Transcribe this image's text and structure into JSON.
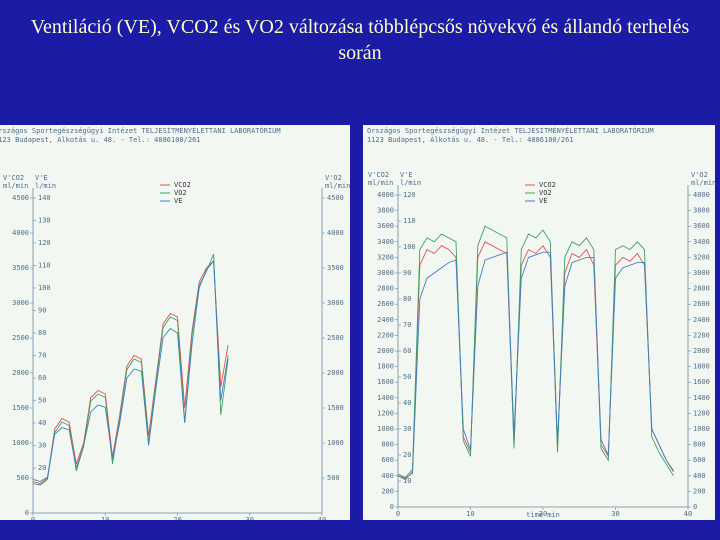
{
  "slide": {
    "title": "Ventiláció (VE), VCO2 és VO2 változása többlépcsős növekvő és állandó terhelés során"
  },
  "chart_data": [
    {
      "type": "line",
      "header": [
        "Országos Sportegészségügyi Intézet   TELJESÍTMÉNYÉLETTANI LABORATÓRIUM",
        "1123 Budapest, Alkotás u. 48. - Tel.: 4886100/261"
      ],
      "ylabel": [
        "V'CO2",
        "ml/min"
      ],
      "y2label": [
        "V'E",
        "l/min"
      ],
      "y3label": [
        "V'O2",
        "ml/min"
      ],
      "x": [
        0,
        1,
        2,
        3,
        4,
        5,
        6,
        7,
        8,
        9,
        10,
        11,
        12,
        13,
        14,
        15,
        16,
        17,
        18,
        19,
        20,
        21,
        22,
        23,
        24,
        25,
        26,
        27
      ],
      "xlim": [
        0,
        40
      ],
      "xticks": [
        0,
        10,
        20,
        30,
        40
      ],
      "ylim": [
        0,
        4500
      ],
      "yticks": [
        0,
        500,
        1000,
        1500,
        2000,
        2500,
        3000,
        3500,
        4000,
        4500
      ],
      "y2lim": [
        0,
        140
      ],
      "y2ticks": [
        20,
        30,
        40,
        50,
        60,
        70,
        80,
        90,
        100,
        110,
        120,
        130,
        140
      ],
      "y3lim": [
        0,
        4500
      ],
      "y3ticks": [
        500,
        1000,
        1500,
        2000,
        2500,
        3000,
        3500,
        4000,
        4500
      ],
      "series": [
        {
          "name": "VCO2",
          "color": "#e05050",
          "values": [
            450,
            420,
            500,
            1200,
            1350,
            1300,
            700,
            1000,
            1650,
            1750,
            1700,
            800,
            1400,
            2100,
            2250,
            2200,
            1100,
            1900,
            2700,
            2850,
            2800,
            1500,
            2600,
            3300,
            3500,
            3600,
            1800,
            2400
          ]
        },
        {
          "name": "VO2",
          "color": "#40a060",
          "axis": "y3",
          "values": [
            420,
            400,
            480,
            1150,
            1300,
            1250,
            600,
            950,
            1600,
            1700,
            1650,
            700,
            1350,
            2050,
            2200,
            2150,
            1000,
            1850,
            2650,
            2800,
            2750,
            1300,
            2550,
            3250,
            3450,
            3700,
            1400,
            2200
          ]
        },
        {
          "name": "VE",
          "color": "#4080c0",
          "axis": "y2",
          "values": [
            15,
            14,
            16,
            35,
            38,
            37,
            20,
            30,
            45,
            48,
            47,
            24,
            40,
            60,
            64,
            63,
            30,
            55,
            78,
            82,
            80,
            40,
            75,
            100,
            108,
            112,
            50,
            70
          ]
        }
      ]
    },
    {
      "type": "line",
      "header": [
        "Országos Sportegészségügyi Intézet   TELJESÍTMÉNYÉLETTANI LABORATÓRIUM",
        "1123 Budapest, Alkotás u. 48. - Tel.: 4886100/261"
      ],
      "ylabel": [
        "V'CO2",
        "ml/min"
      ],
      "y2label": [
        "V'E",
        "l/min"
      ],
      "y3label": [
        "V'O2",
        "ml/min"
      ],
      "xlabel": "time  min",
      "x": [
        0,
        1,
        2,
        3,
        4,
        5,
        6,
        7,
        8,
        9,
        10,
        11,
        12,
        13,
        14,
        15,
        16,
        17,
        18,
        19,
        20,
        21,
        22,
        23,
        24,
        25,
        26,
        27,
        28,
        29,
        30,
        31,
        32,
        33,
        34,
        35,
        36,
        37,
        38
      ],
      "xlim": [
        0,
        40
      ],
      "xticks": [
        0,
        10,
        20,
        30,
        40
      ],
      "ylim": [
        0,
        4000
      ],
      "yticks": [
        0,
        200,
        400,
        600,
        800,
        1000,
        1200,
        1400,
        1600,
        1800,
        2000,
        2200,
        2400,
        2600,
        2800,
        3000,
        3200,
        3400,
        3600,
        3800,
        4000
      ],
      "y2lim": [
        0,
        120
      ],
      "y2ticks": [
        10,
        20,
        30,
        40,
        50,
        60,
        70,
        80,
        90,
        100,
        110,
        120
      ],
      "y3lim": [
        0,
        4000
      ],
      "y3ticks": [
        0,
        200,
        400,
        600,
        800,
        1000,
        1200,
        1400,
        1600,
        1800,
        2000,
        2200,
        2400,
        2600,
        2800,
        3000,
        3200,
        3400,
        3600,
        3800,
        4000
      ],
      "series": [
        {
          "name": "VCO2",
          "color": "#e05050",
          "values": [
            400,
            350,
            450,
            3100,
            3300,
            3250,
            3350,
            3300,
            3200,
            900,
            700,
            3200,
            3400,
            3350,
            3300,
            3250,
            800,
            3100,
            3300,
            3250,
            3350,
            3200,
            750,
            3000,
            3250,
            3200,
            3300,
            3100,
            800,
            650,
            3100,
            3200,
            3150,
            3250,
            3100,
            1000,
            800,
            600,
            450
          ]
        },
        {
          "name": "VO2",
          "color": "#40a060",
          "axis": "y3",
          "values": [
            420,
            380,
            480,
            3300,
            3450,
            3400,
            3500,
            3450,
            3400,
            850,
            650,
            3350,
            3600,
            3550,
            3500,
            3450,
            750,
            3300,
            3500,
            3450,
            3550,
            3400,
            700,
            3200,
            3400,
            3350,
            3450,
            3300,
            750,
            600,
            3300,
            3350,
            3300,
            3400,
            3300,
            900,
            700,
            550,
            400
          ]
        },
        {
          "name": "VE",
          "color": "#4080c0",
          "axis": "y2",
          "values": [
            12,
            11,
            13,
            80,
            88,
            90,
            92,
            94,
            95,
            30,
            22,
            85,
            95,
            96,
            97,
            98,
            28,
            88,
            96,
            97,
            98,
            98,
            25,
            85,
            94,
            95,
            96,
            96,
            26,
            20,
            88,
            92,
            93,
            94,
            94,
            30,
            24,
            18,
            14
          ]
        }
      ]
    }
  ]
}
